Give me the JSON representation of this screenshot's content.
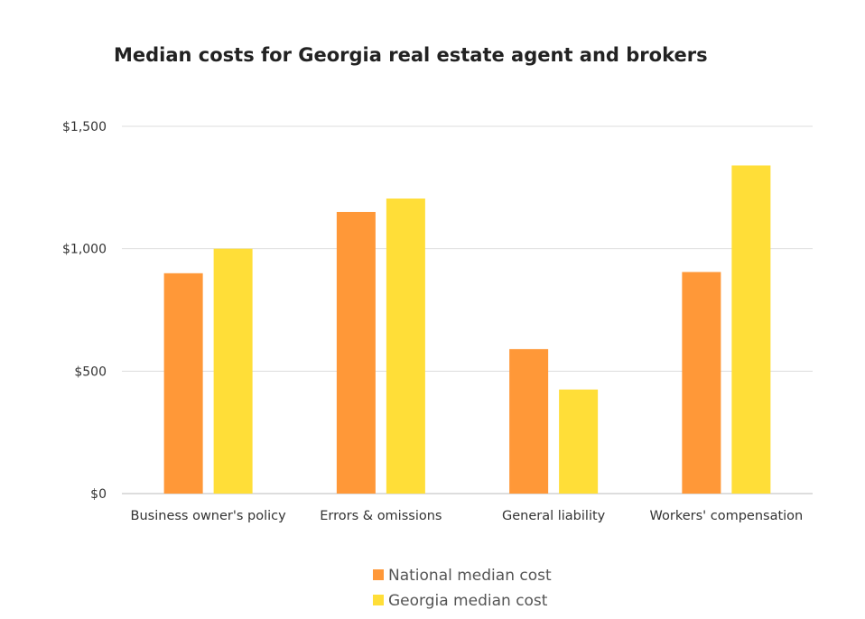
{
  "chart_data": {
    "type": "bar",
    "title": "Median costs for Georgia real estate agent and brokers",
    "xlabel": "",
    "ylabel": "",
    "categories": [
      "Business owner's policy",
      "Errors & omissions",
      "General liability",
      "Workers' compensation"
    ],
    "series": [
      {
        "name": "National median cost",
        "color": "#ff9838",
        "values": [
          900,
          1150,
          590,
          905
        ]
      },
      {
        "name": "Georgia median cost",
        "color": "#ffde38",
        "values": [
          1000,
          1205,
          425,
          1340
        ]
      }
    ],
    "ylim": [
      0,
      1500
    ],
    "yticks": [
      0,
      500,
      1000,
      1500
    ],
    "ytick_labels": [
      "$0",
      "$500",
      "$1,000",
      "$1,500"
    ],
    "grid": true,
    "legend_position": "bottom"
  }
}
